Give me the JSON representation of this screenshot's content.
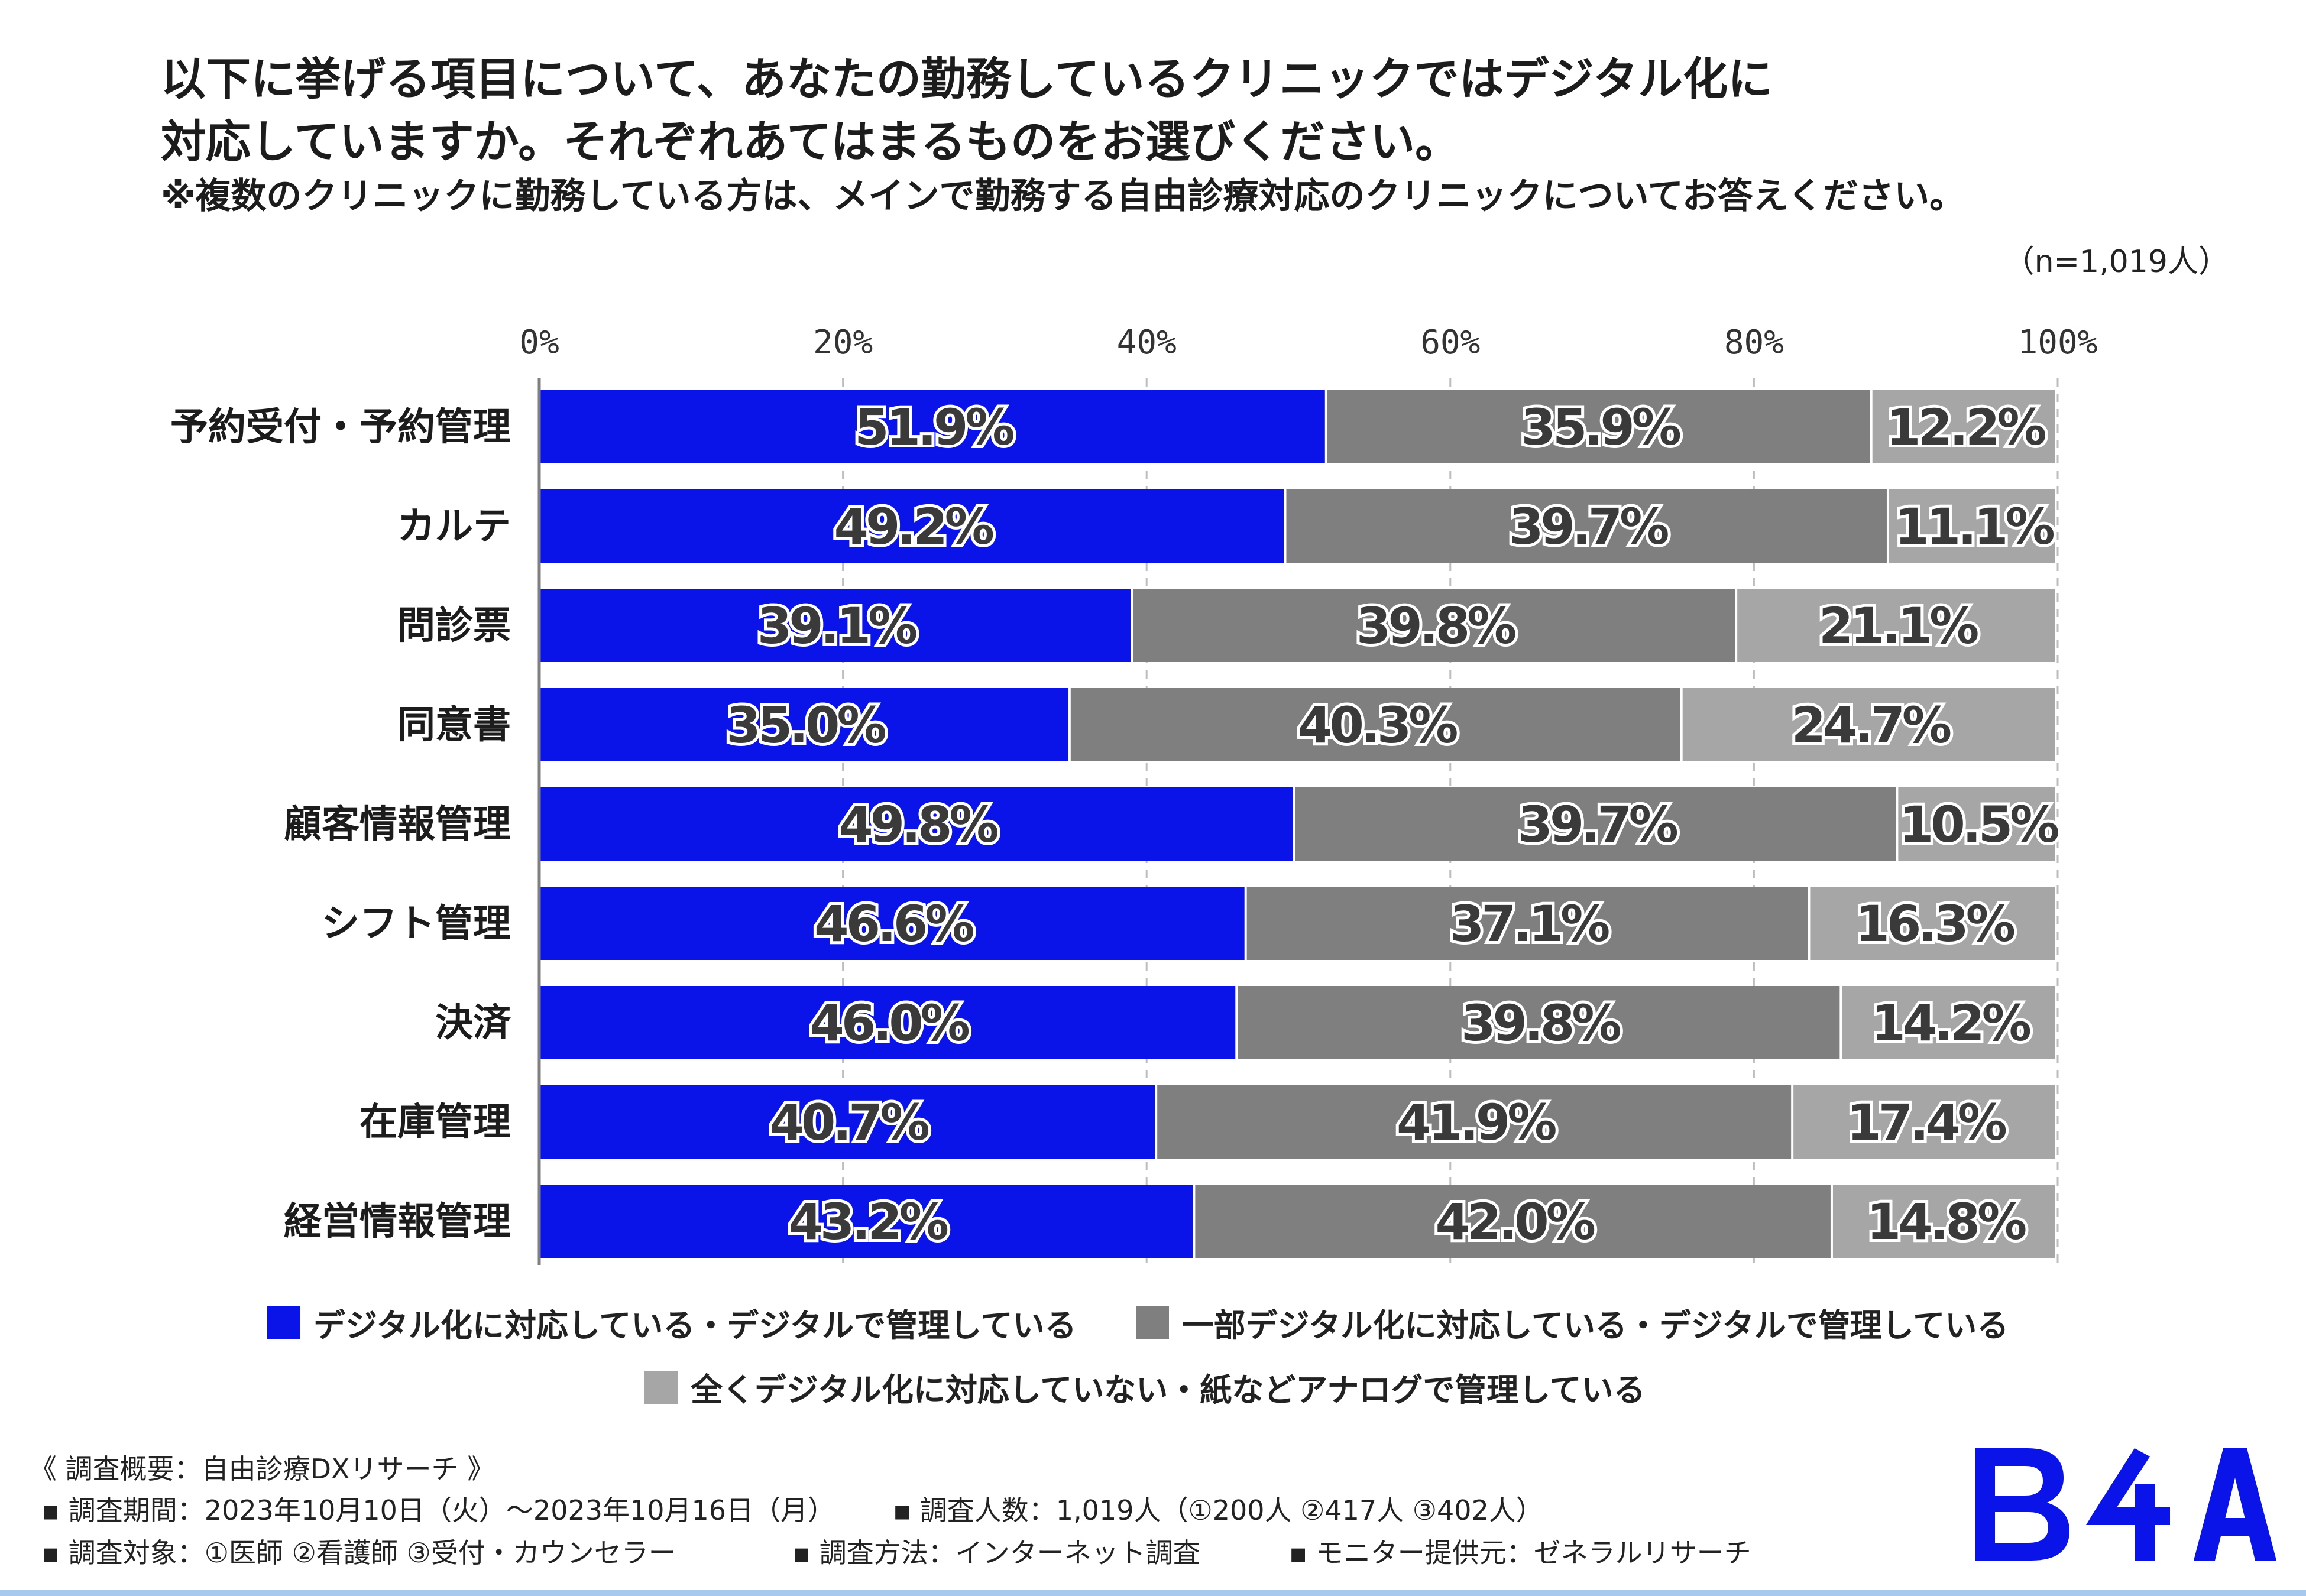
{
  "header": {
    "title_line1": "以下に挙げる項目について、あなたの勤務しているクリニックではデジタル化に",
    "title_line2": "対応していますか。それぞれあてはまるものをお選びください。",
    "note": "※複数のクリニックに勤務している方は、メインで勤務する自由診療対応のクリニックについてお答えください。",
    "sample_size": "（n=1,019人）"
  },
  "chart_data": {
    "type": "bar",
    "orientation": "horizontal",
    "stacked": true,
    "normalized": true,
    "xlim": [
      0,
      100
    ],
    "ticks": [
      "0%",
      "20%",
      "40%",
      "60%",
      "80%",
      "100%"
    ],
    "grid": true,
    "legend_position": "bottom",
    "categories": [
      "予約受付・予約管理",
      "カルテ",
      "問診票",
      "同意書",
      "顧客情報管理",
      "シフト管理",
      "決済",
      "在庫管理",
      "経営情報管理"
    ],
    "series": [
      {
        "name": "デジタル化に対応している・デジタルで管理している",
        "color": "#0a14e8",
        "values": [
          51.9,
          49.2,
          39.1,
          35.0,
          49.8,
          46.6,
          46.0,
          40.7,
          43.2
        ],
        "labels": [
          "51.9%",
          "49.2%",
          "39.1%",
          "35.0%",
          "49.8%",
          "46.6%",
          "46.0%",
          "40.7%",
          "43.2%"
        ]
      },
      {
        "name": "一部デジタル化に対応している・デジタルで管理している",
        "color": "#7f7f7f",
        "values": [
          35.9,
          39.7,
          39.8,
          40.3,
          39.7,
          37.1,
          39.8,
          41.9,
          42.0
        ],
        "labels": [
          "35.9%",
          "39.7%",
          "39.8%",
          "40.3%",
          "39.7%",
          "37.1%",
          "39.8%",
          "41.9%",
          "42.0%"
        ]
      },
      {
        "name": "全くデジタル化に対応していない・紙などアナログで管理している",
        "color": "#a6a6a6",
        "values": [
          12.2,
          11.1,
          21.1,
          24.7,
          10.5,
          16.3,
          14.2,
          17.4,
          14.8
        ],
        "labels": [
          "12.2%",
          "11.1%",
          "21.1%",
          "24.7%",
          "10.5%",
          "16.3%",
          "14.2%",
          "17.4%",
          "14.8%"
        ]
      }
    ]
  },
  "footer": {
    "summary": "《 調査概要：自由診療DXリサーチ 》",
    "period": "▪ 調査期間：2023年10月10日（火）～2023年10月16日（月）",
    "respondents": "▪ 調査人数：1,019人（①200人 ②417人 ③402人）",
    "target": "▪ 調査対象：①医師 ②看護師 ③受付・カウンセラー",
    "method": "▪ 調査方法：インターネット調査",
    "provider": "▪ モニター提供元：ゼネラルリサーチ"
  },
  "brand": {
    "logo_text": "B4A",
    "accent": "#0a14e8"
  }
}
